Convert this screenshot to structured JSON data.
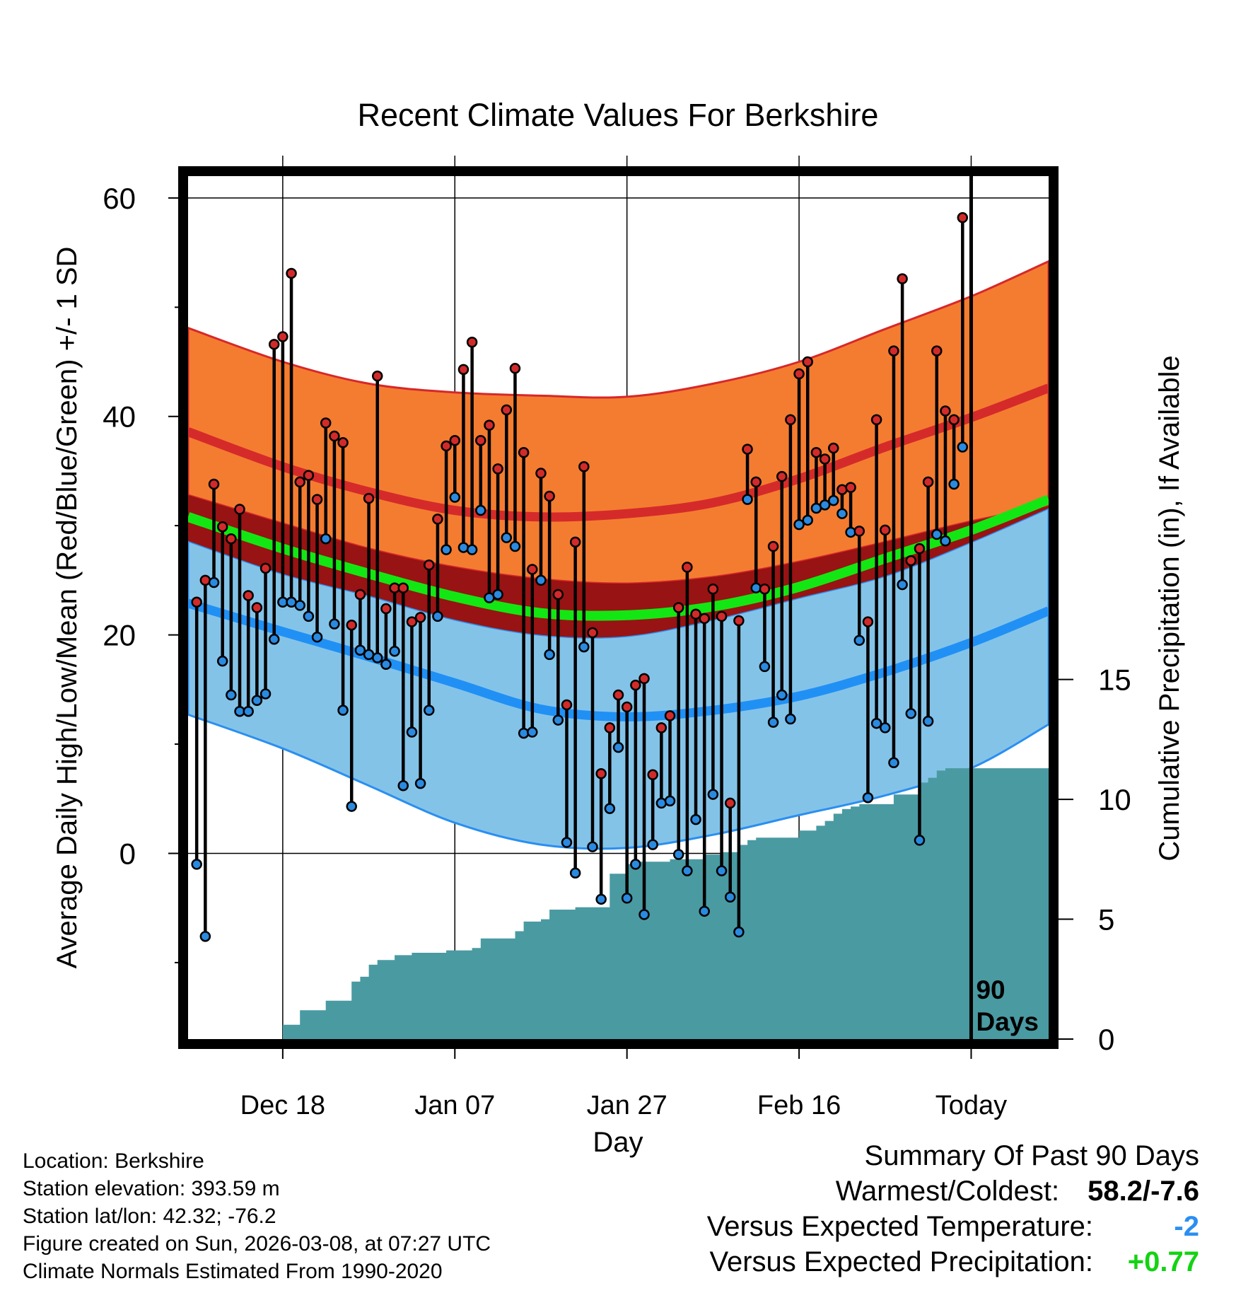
{
  "chart_data": {
    "type": "line",
    "title": "Recent Climate Values For Berkshire",
    "xlabel": "Day",
    "ylabel_left": "Average Daily High/Low/Mean (Red/Blue/Green) +/- 1 SD",
    "ylabel_right": "Cumulative Precipitation (in), If Available",
    "ylim_left": [
      -17,
      62
    ],
    "ylim_right": [
      0,
      36
    ],
    "x_range_days": [
      -91,
      9
    ],
    "x_ticks": [
      {
        "day": -80,
        "label": "Dec 18"
      },
      {
        "day": -60,
        "label": "Jan 07"
      },
      {
        "day": -40,
        "label": "Jan 27"
      },
      {
        "day": -20,
        "label": "Feb 16"
      },
      {
        "day": 0,
        "label": "Today"
      }
    ],
    "y_ticks_left": [
      0,
      20,
      40,
      60
    ],
    "y_minor_ticks_left": [
      -10,
      10,
      30,
      50
    ],
    "y_ticks_right": [
      0,
      5,
      10,
      15
    ],
    "window_label": "90\nDays",
    "colors": {
      "high_band": "#f47c30",
      "high_band_edge": "#d6282a",
      "high_mean": "#d52a2a",
      "overlap_band": "#981313",
      "low_band": "#84c3e8",
      "low_band_edge": "#2a8ff0",
      "low_mean": "#2090f5",
      "mean_line": "#13e713",
      "precip": "#4a9aa2",
      "high_dot": "#d22a2a",
      "low_dot": "#2a8ae0"
    },
    "normals": {
      "days": [
        -91,
        -80,
        -70,
        -60,
        -50,
        -40,
        -30,
        -20,
        -10,
        0,
        9
      ],
      "high_mean": [
        38.6,
        35.4,
        33.1,
        31.4,
        30.8,
        31.1,
        32.1,
        34.3,
        37.2,
        39.9,
        42.6
      ],
      "high_upper": [
        48.1,
        45.0,
        43.0,
        42.2,
        41.9,
        41.8,
        43.0,
        45.0,
        48.0,
        51.0,
        54.2
      ],
      "high_lower": [
        32.8,
        30.2,
        27.9,
        26.2,
        25.1,
        24.7,
        25.3,
        26.7,
        28.5,
        30.4,
        31.8
      ],
      "low_mean": [
        22.9,
        20.3,
        18.0,
        15.6,
        13.2,
        12.5,
        13.1,
        14.4,
        16.6,
        19.3,
        22.2
      ],
      "low_upper": [
        28.6,
        25.6,
        23.6,
        21.4,
        20.0,
        19.9,
        21.4,
        23.4,
        25.4,
        28.5,
        31.6
      ],
      "low_lower": [
        12.7,
        9.6,
        6.2,
        2.8,
        0.8,
        0.5,
        1.7,
        3.5,
        5.3,
        7.8,
        11.8
      ],
      "avg_mean": [
        30.8,
        27.9,
        25.6,
        23.5,
        22.0,
        21.8,
        22.6,
        24.4,
        27.0,
        29.6,
        32.4
      ]
    },
    "daily_series": {
      "start_day": -90,
      "high": [
        23,
        25,
        33.8,
        29.9,
        28.8,
        31.5,
        23.6,
        22.5,
        26.1,
        46.6,
        47.3,
        53.1,
        34,
        34.6,
        32.4,
        39.4,
        38.2,
        37.6,
        20.9,
        23.7,
        32.5,
        43.7,
        22.4,
        24.3,
        24.3,
        21.2,
        21.6,
        26.4,
        30.6,
        37.3,
        37.8,
        44.3,
        46.8,
        37.8,
        39.2,
        35.2,
        40.6,
        44.4,
        36.7,
        26,
        34.8,
        32.7,
        23.7,
        13.6,
        28.5,
        35.4,
        20.2,
        7.3,
        11.5,
        14.5,
        13.4,
        15.4,
        16,
        7.2,
        11.5,
        12.6,
        22.5,
        26.2,
        21.9,
        21.5,
        24.2,
        21.7,
        4.6,
        21.3,
        37,
        34,
        24.2,
        28.1,
        34.5,
        39.7,
        43.9,
        45,
        36.7,
        36.1,
        37.1,
        33.3,
        33.5,
        29.5,
        21.2,
        39.7,
        29.6,
        46,
        52.6,
        26.8,
        27.9,
        34,
        46,
        40.5,
        39.7,
        58.2
      ],
      "low": [
        -1,
        -7.6,
        24.8,
        17.6,
        14.5,
        13,
        13,
        14,
        14.6,
        19.6,
        23,
        23,
        22.7,
        21.7,
        19.8,
        28.8,
        21,
        13.1,
        4.3,
        18.6,
        18.2,
        17.9,
        17.3,
        18.5,
        6.2,
        11.1,
        6.4,
        13.1,
        21.7,
        27.8,
        32.6,
        28,
        27.8,
        31.4,
        23.4,
        23.7,
        28.9,
        28.1,
        11,
        11.1,
        25,
        18.2,
        12.2,
        1,
        -1.8,
        18.9,
        0.6,
        -4.2,
        4.1,
        9.7,
        -4.1,
        -1,
        -5.6,
        0.8,
        4.6,
        4.8,
        -0.1,
        -1.6,
        3.1,
        -5.3,
        5.4,
        -1.6,
        -4,
        -7.2,
        32.4,
        24.3,
        17.1,
        12,
        14.5,
        12.3,
        30.1,
        30.5,
        31.6,
        31.9,
        32.3,
        31.1,
        29.4,
        19.5,
        5.1,
        11.9,
        11.5,
        8.3,
        24.6,
        12.8,
        1.2,
        12.1,
        29.2,
        28.6,
        33.8,
        37.2
      ]
    },
    "precip_cumulative": {
      "days": [
        -91,
        -80.5,
        -80,
        -78,
        -77,
        -75,
        -73,
        -72,
        -71,
        -70,
        -69,
        -67,
        -65,
        -61,
        -58,
        -57,
        -55,
        -53,
        -52,
        -50,
        -49,
        -46,
        -43,
        -42,
        -40,
        -39,
        -35,
        -32,
        -31,
        -29,
        -27,
        -26,
        -25,
        -23,
        -21,
        -20,
        -18,
        -17,
        -16,
        -15,
        -14,
        -13,
        -12,
        -11,
        -10,
        -9,
        -7,
        -6,
        -5,
        -4,
        -3,
        0,
        9
      ],
      "values": [
        0,
        0,
        0.6,
        1.2,
        1.2,
        1.6,
        1.6,
        2.4,
        2.6,
        3.1,
        3.3,
        3.5,
        3.6,
        3.7,
        3.8,
        4.2,
        4.2,
        4.5,
        4.9,
        5,
        5.4,
        5.5,
        5.5,
        6.9,
        7.3,
        7.4,
        7.5,
        7.5,
        7.7,
        7.8,
        8.1,
        8.3,
        8.4,
        8.4,
        8.4,
        8.7,
        8.9,
        9.1,
        9.4,
        9.6,
        9.7,
        9.8,
        9.8,
        9.8,
        9.8,
        10.2,
        10.2,
        10.7,
        10.9,
        11.2,
        11.3,
        11.3,
        11.3
      ]
    }
  },
  "footer": {
    "location": "Location: Berkshire",
    "elevation": "Station elevation: 393.59 m",
    "latlon": "Station lat/lon: 42.32; -76.2",
    "created": "Figure created on Sun, 2026-03-08, at 07:27 UTC",
    "normals": "Climate Normals Estimated From 1990-2020"
  },
  "summary": {
    "title": "Summary Of Past 90 Days",
    "warmest_coldest_label": "Warmest/Coldest:",
    "warmest_coldest_value": "58.2/-7.6",
    "temp_label": "Versus Expected Temperature:",
    "temp_value": "-2",
    "temp_color": "#2a8ff0",
    "precip_label": "Versus Expected Precipitation:",
    "precip_value": "+0.77",
    "precip_color": "#13d313"
  }
}
